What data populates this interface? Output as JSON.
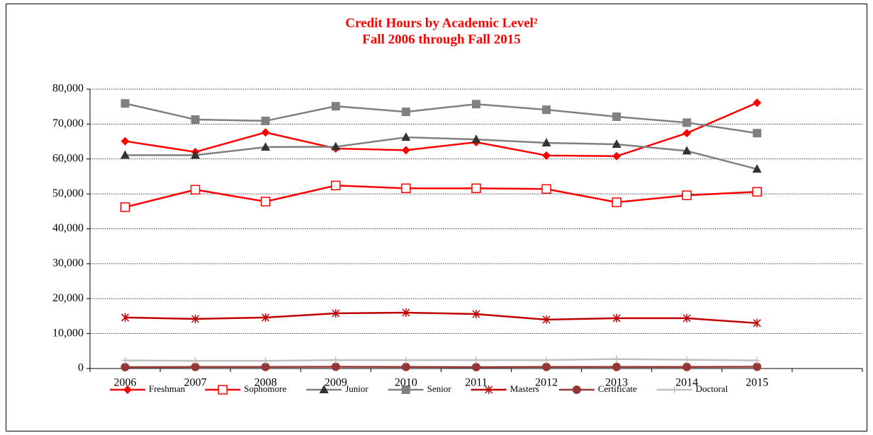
{
  "chart_data": {
    "type": "line",
    "title": "Credit Hours by Academic Level²",
    "subtitle": "Fall 2006 through Fall 2015",
    "title_color": "#ff0000",
    "categories": [
      "2006",
      "2007",
      "2008",
      "2009",
      "2010",
      "2011",
      "2012",
      "2013",
      "2014",
      "2015",
      null
    ],
    "series": [
      {
        "name": "Freshman",
        "color": "#ff0000",
        "marker": "diamond",
        "marker_color": "#ff0000",
        "values": [
          65100,
          62000,
          67600,
          63000,
          62500,
          64800,
          61000,
          60800,
          67400,
          76100,
          null
        ]
      },
      {
        "name": "Sophomore",
        "color": "#ff0000",
        "marker": "open-square",
        "marker_color": "#ff0000",
        "values": [
          46200,
          51200,
          47800,
          52400,
          51600,
          51600,
          51400,
          47600,
          49600,
          50600,
          null
        ]
      },
      {
        "name": "Junior",
        "color": "#808080",
        "marker": "triangle",
        "marker_color": "#333333",
        "values": [
          61100,
          61100,
          63400,
          63500,
          66200,
          65600,
          64600,
          64200,
          62300,
          57100,
          null
        ]
      },
      {
        "name": "Senior",
        "color": "#808080",
        "marker": "square",
        "marker_color": "#808080",
        "values": [
          75900,
          71300,
          70900,
          75100,
          73500,
          75700,
          74100,
          72100,
          70400,
          67400,
          null
        ]
      },
      {
        "name": "Masters",
        "color": "#c00000",
        "marker": "star",
        "marker_color": "#c00000",
        "values": [
          14600,
          14200,
          14600,
          15800,
          16000,
          15600,
          14000,
          14400,
          14400,
          13000,
          null
        ]
      },
      {
        "name": "Certificate",
        "color": "#953735",
        "marker": "circle",
        "marker_color": "#953735",
        "values": [
          400,
          450,
          450,
          500,
          450,
          400,
          450,
          450,
          450,
          500,
          null
        ]
      },
      {
        "name": "Doctoral",
        "color": "#bfbfbf",
        "marker": "plus",
        "marker_color": "#bfbfbf",
        "values": [
          2300,
          2200,
          2200,
          2400,
          2400,
          2400,
          2400,
          2700,
          2500,
          2300,
          null
        ]
      }
    ],
    "ylim": [
      0,
      80000
    ],
    "yticks": [
      0,
      {
        "value": 10000,
        "label": "10,000"
      },
      {
        "value": 20000,
        "label": "20,000"
      },
      {
        "value": 30000,
        "label": "30,000"
      },
      {
        "value": 40000,
        "label": "40,000"
      },
      {
        "value": 50000,
        "label": "50,000"
      },
      {
        "value": 60000,
        "label": "60,000"
      },
      {
        "value": 70000,
        "label": "70,000"
      },
      {
        "value": 80000,
        "label": "80,000"
      }
    ],
    "grid": true,
    "legend": "bottom"
  }
}
